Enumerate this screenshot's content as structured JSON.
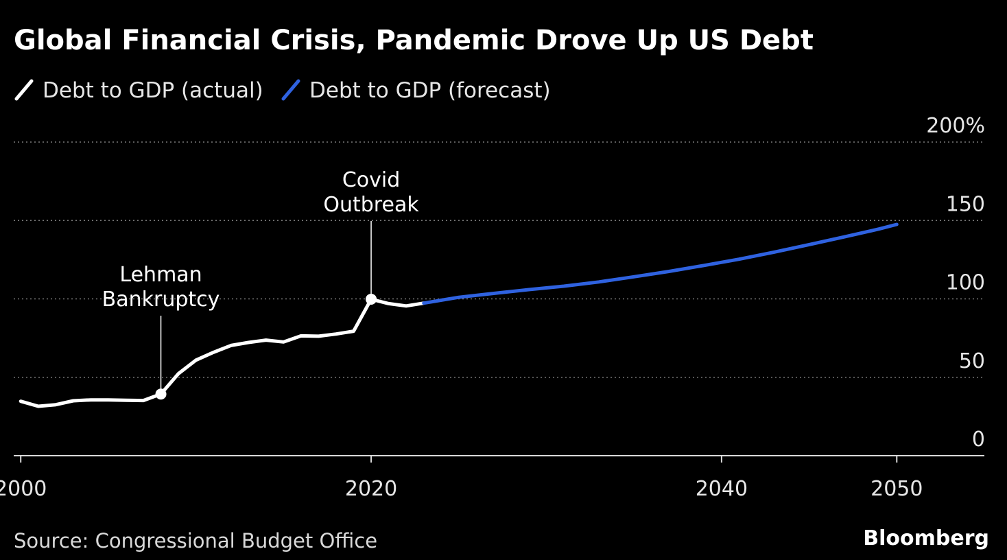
{
  "chart_data": {
    "type": "line",
    "title": "Global Financial Crisis, Pandemic Drove Up US Debt",
    "xlabel": "",
    "ylabel": "",
    "xlim": [
      1999.6,
      2055
    ],
    "ylim": [
      0,
      200
    ],
    "y_ticks": [
      0,
      50,
      100,
      150,
      200
    ],
    "y_tick_labels": [
      "0",
      "50",
      "100",
      "150",
      "200%"
    ],
    "x_ticks": [
      2000,
      2020,
      2040,
      2050
    ],
    "x_tick_labels": [
      "2000",
      "2020",
      "2040",
      "2050"
    ],
    "grid": true,
    "legend_position": "top-left",
    "series": [
      {
        "name": "Debt to GDP (actual)",
        "color": "#ffffff",
        "x": [
          2000,
          2001,
          2002,
          2003,
          2004,
          2005,
          2006,
          2007,
          2008,
          2009,
          2010,
          2011,
          2012,
          2013,
          2014,
          2015,
          2016,
          2017,
          2018,
          2019,
          2020,
          2021,
          2022,
          2023
        ],
        "y": [
          34.7,
          31.5,
          32.5,
          35.0,
          35.6,
          35.6,
          35.3,
          35.2,
          39.3,
          52.3,
          60.9,
          65.9,
          70.3,
          72.2,
          73.7,
          72.5,
          76.4,
          76.2,
          77.6,
          79.4,
          99.8,
          97.0,
          95.5,
          97.3
        ]
      },
      {
        "name": "Debt to GDP (forecast)",
        "color": "#2f62e0",
        "x": [
          2023,
          2025,
          2027,
          2029,
          2031,
          2033,
          2035,
          2037,
          2039,
          2041,
          2043,
          2045,
          2047,
          2049,
          2050
        ],
        "y": [
          97.3,
          101.0,
          103.5,
          105.9,
          108.1,
          110.8,
          114.1,
          117.5,
          121.3,
          125.3,
          129.8,
          134.6,
          139.5,
          144.6,
          147.5
        ]
      }
    ],
    "annotations": [
      {
        "label_lines": [
          "Lehman",
          "Bankruptcy"
        ],
        "x": 2008,
        "y": 39.3
      },
      {
        "label_lines": [
          "Covid",
          "Outbreak"
        ],
        "x": 2020,
        "y": 99.8
      }
    ],
    "source": "Source: Congressional Budget Office",
    "brand": "Bloomberg"
  }
}
